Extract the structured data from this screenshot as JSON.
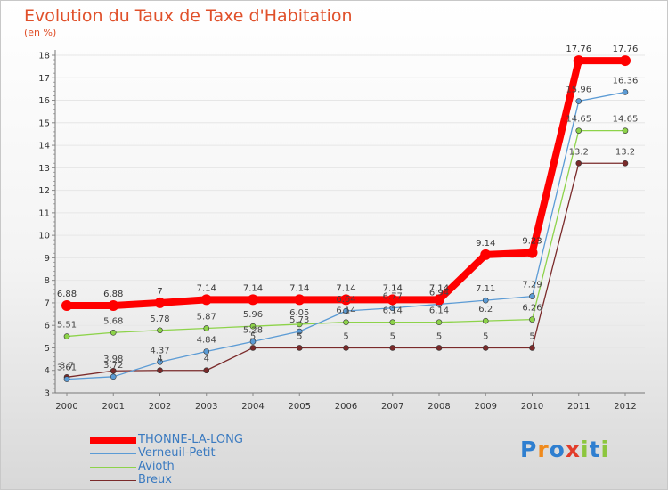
{
  "chart_data": {
    "type": "line",
    "title": "Evolution du Taux de Taxe d'Habitation",
    "subtitle": "(en %)",
    "xlabel": "",
    "ylabel": "",
    "categories": [
      "2000",
      "2001",
      "2002",
      "2003",
      "2004",
      "2005",
      "2006",
      "2007",
      "2008",
      "2009",
      "2010",
      "2011",
      "2012"
    ],
    "ylim": [
      3,
      18
    ],
    "yticks": [
      3,
      4,
      5,
      6,
      7,
      8,
      9,
      10,
      11,
      12,
      13,
      14,
      15,
      16,
      17,
      18
    ],
    "series": [
      {
        "name": "THONNE-LA-LONG",
        "color": "#ff0000",
        "values": [
          6.88,
          6.88,
          7,
          7.14,
          7.14,
          7.14,
          7.14,
          7.14,
          7.14,
          9.14,
          9.23,
          17.76,
          17.76
        ],
        "labels": [
          "6.88",
          "6.88",
          "7",
          "7.14",
          "7.14",
          "7.14",
          "7.14",
          "7.14",
          "7.14",
          "9.14",
          "9.23",
          "17.76",
          "17.76"
        ]
      },
      {
        "name": "Verneuil-Petit",
        "color": "#5b9bd5",
        "values": [
          3.61,
          3.72,
          4.37,
          4.84,
          5.28,
          5.73,
          6.64,
          6.77,
          6.94,
          7.11,
          7.29,
          15.96,
          16.36
        ],
        "labels": [
          "3.61",
          "3.72",
          "4.37",
          "4.84",
          "5.28",
          "5.73",
          "6.64",
          "6.77",
          "6.94",
          "7.11",
          "7.29",
          "15.96",
          "16.36"
        ]
      },
      {
        "name": "Avioth",
        "color": "#8dd34a",
        "values": [
          5.51,
          5.68,
          5.78,
          5.87,
          5.96,
          6.05,
          6.14,
          6.14,
          6.14,
          6.2,
          6.26,
          14.65,
          14.65
        ],
        "labels": [
          "5.51",
          "5.68",
          "5.78",
          "5.87",
          "5.96",
          "6.05",
          "6.14",
          "6.14",
          "6.14",
          "6.2",
          "6.26",
          "14.65",
          "14.65"
        ]
      },
      {
        "name": "Breux",
        "color": "#7a2a2a",
        "values": [
          3.7,
          3.98,
          4,
          4,
          5,
          5,
          5,
          5,
          5,
          5,
          5,
          13.2,
          13.2
        ],
        "labels": [
          "3.7",
          "3.98",
          "4",
          "4",
          "5",
          "5",
          "5",
          "5",
          "5",
          "5",
          "5",
          "13.2",
          "13.2"
        ]
      }
    ]
  },
  "legend": {
    "items": [
      {
        "label": "THONNE-LA-LONG"
      },
      {
        "label": "Verneuil-Petit"
      },
      {
        "label": "Avioth"
      },
      {
        "label": "Breux"
      }
    ]
  },
  "logo": {
    "text": "Proxiti"
  }
}
